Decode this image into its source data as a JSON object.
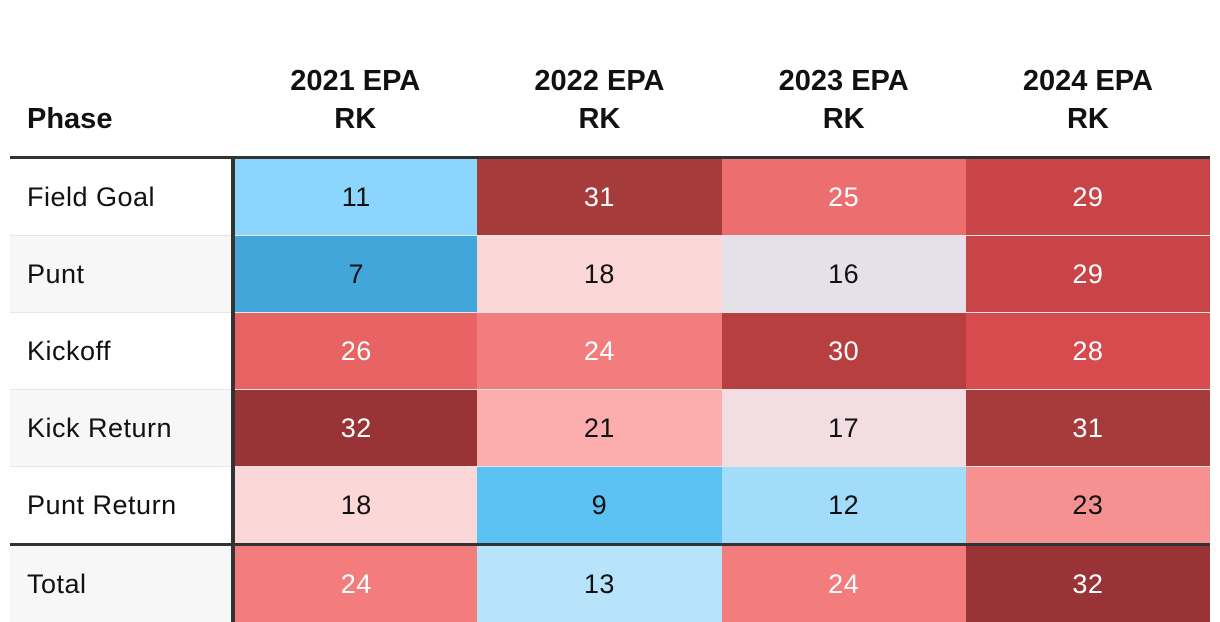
{
  "chart_data": {
    "type": "table",
    "columns": [
      "Phase",
      "2021 EPA RK",
      "2022 EPA RK",
      "2023 EPA RK",
      "2024 EPA RK"
    ],
    "header": {
      "phase": "Phase",
      "years": [
        {
          "line1": "2021 EPA",
          "line2": "RK"
        },
        {
          "line1": "2022 EPA",
          "line2": "RK"
        },
        {
          "line1": "2023 EPA",
          "line2": "RK"
        },
        {
          "line1": "2024 EPA",
          "line2": "RK"
        }
      ]
    },
    "rows": [
      {
        "phase": "Field Goal",
        "values": [
          11,
          31,
          25,
          29
        ]
      },
      {
        "phase": "Punt",
        "values": [
          7,
          18,
          16,
          29
        ]
      },
      {
        "phase": "Kickoff",
        "values": [
          26,
          24,
          30,
          28
        ]
      },
      {
        "phase": "Kick Return",
        "values": [
          32,
          21,
          17,
          31
        ]
      },
      {
        "phase": "Punt Return",
        "values": [
          18,
          9,
          12,
          23
        ]
      }
    ],
    "total": {
      "phase": "Total",
      "values": [
        24,
        13,
        24,
        32
      ]
    },
    "value_range": [
      1,
      32
    ]
  },
  "cell_colors": {
    "7": "#42a6db",
    "9": "#5bc2f3",
    "11": "#8cd5fc",
    "12": "#a1dcfb",
    "13": "#b8e4fb",
    "16": "#e6e0e8",
    "17": "#f1dde2",
    "18": "#fbd7d8",
    "21": "#fcaeae",
    "23": "#f79090",
    "24": "#f37d7d",
    "25": "#ec6e6e",
    "26": "#e86363",
    "28": "#d74a4e",
    "29": "#c84447",
    "30": "#b73f40",
    "31": "#a63b3c",
    "32": "#9a3335"
  },
  "text_colors": {
    "light": "#ffffff",
    "dark": "#111111"
  }
}
